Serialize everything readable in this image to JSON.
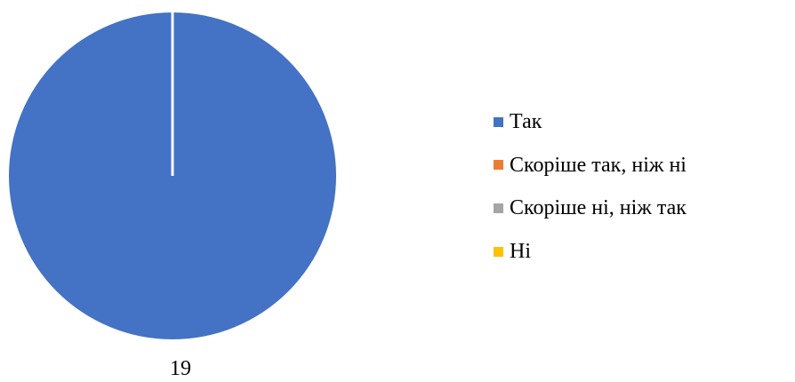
{
  "chart_data": {
    "type": "pie",
    "categories": [
      "Так",
      "Скоріше так, ніж ні",
      "Скоріше ні, ніж так",
      "Ні"
    ],
    "values": [
      19,
      0,
      0,
      0
    ],
    "data_labels": [
      "19",
      "",
      "",
      ""
    ],
    "colors": [
      "#4472C4",
      "#ED7D31",
      "#A5A5A5",
      "#FFC000"
    ],
    "title": "",
    "legend_position": "right",
    "start_angle": "top, clockwise"
  }
}
